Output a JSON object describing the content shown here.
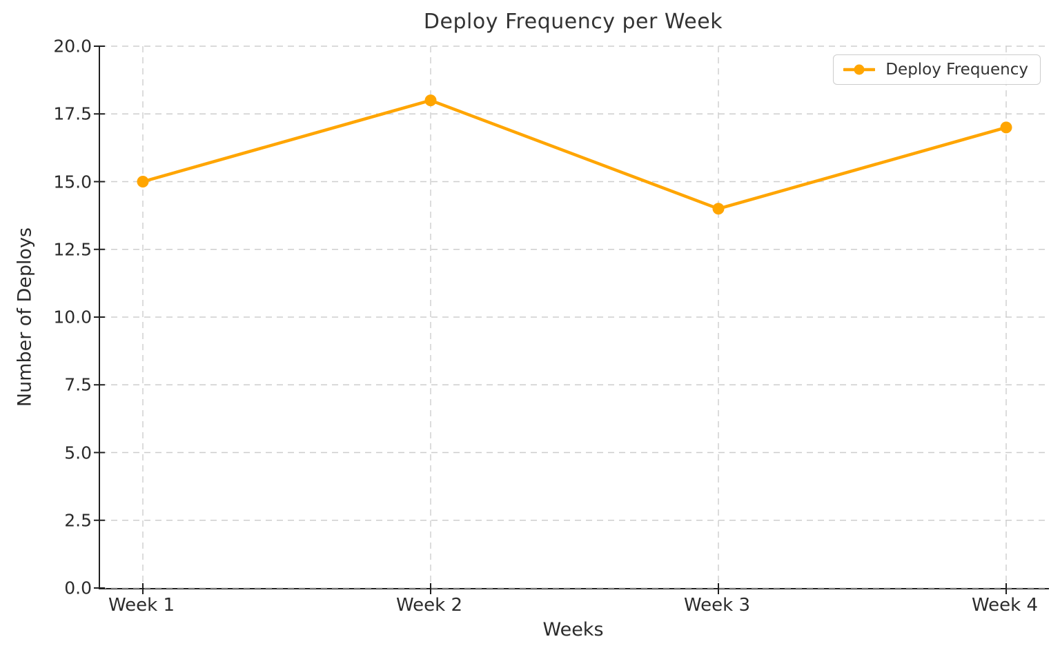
{
  "chart_data": {
    "type": "line",
    "title": "Deploy Frequency per Week",
    "xlabel": "Weeks",
    "ylabel": "Number of Deploys",
    "categories": [
      "Week 1",
      "Week 2",
      "Week 3",
      "Week 4"
    ],
    "series": [
      {
        "name": "Deploy Frequency",
        "values": [
          15,
          18,
          14,
          17
        ],
        "color": "#FFA500",
        "marker": "circle",
        "line_width": 4.5,
        "marker_radius": 8.5
      }
    ],
    "ylim": [
      0,
      20
    ],
    "ytick_values": [
      0,
      2.5,
      5,
      7.5,
      10,
      12.5,
      15,
      17.5,
      20
    ],
    "ytick_labels": [
      "0.0",
      "2.5",
      "5.0",
      "7.5",
      "10.0",
      "12.5",
      "15.0",
      "17.5",
      "20.0"
    ],
    "grid": {
      "visible": true,
      "style": "dashed",
      "color": "#cdcdcd"
    },
    "legend": {
      "position": "upper-right",
      "entries": [
        "Deploy Frequency"
      ]
    }
  },
  "style": {
    "background": "#ffffff",
    "text_color": "#333333",
    "spine_color": "#1f1f1f",
    "grid_color": "#cdcdcd",
    "accent": "#FFA500"
  }
}
